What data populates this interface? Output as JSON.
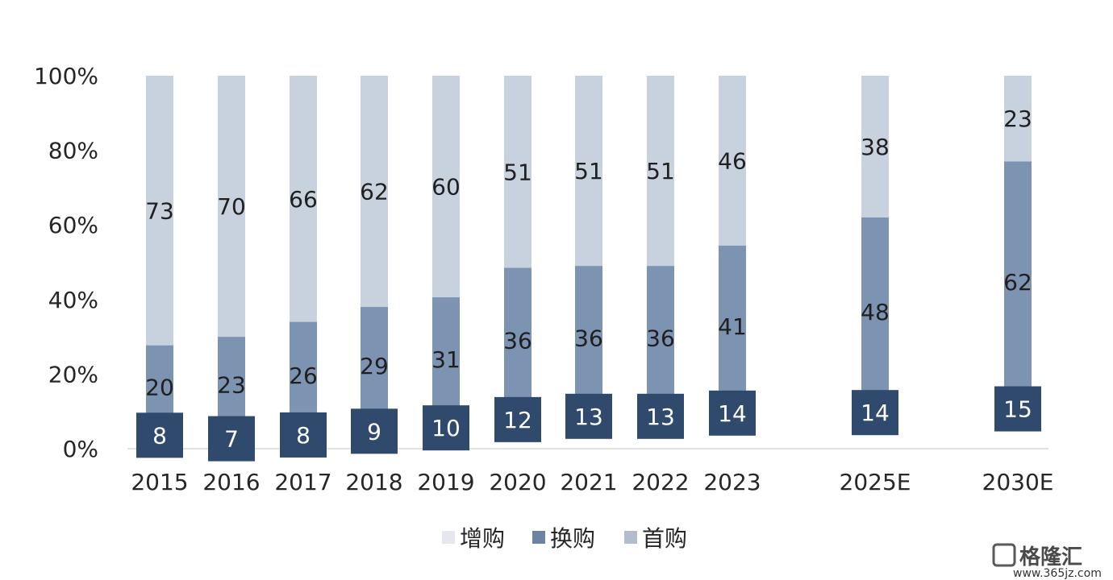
{
  "chart_data": {
    "type": "bar",
    "stacked": true,
    "categories": [
      "2015",
      "2016",
      "2017",
      "2018",
      "2019",
      "2020",
      "2021",
      "2022",
      "2023",
      "2025E",
      "2030E"
    ],
    "series": [
      {
        "name": "增购",
        "values": [
          8,
          7,
          8,
          9,
          10,
          12,
          13,
          13,
          14,
          14,
          15
        ],
        "color": "#2f4a6d"
      },
      {
        "name": "换购",
        "values": [
          20,
          23,
          26,
          29,
          31,
          36,
          36,
          36,
          41,
          48,
          62
        ],
        "color": "#7d93b2"
      },
      {
        "name": "首购",
        "values": [
          73,
          70,
          66,
          62,
          60,
          51,
          51,
          51,
          46,
          38,
          23
        ],
        "color": "#c8d1de"
      }
    ],
    "legend_swatch_colors": [
      "#e4e8ee",
      "#6d83a3",
      "#b3bccb"
    ],
    "yaxis": {
      "ylim": [
        0,
        100
      ],
      "ticks": [
        "0%",
        "20%",
        "40%",
        "60%",
        "80%",
        "100%"
      ]
    },
    "title": "",
    "xlabel": "",
    "ylabel": "",
    "grid": false,
    "legend_position": "bottom"
  },
  "watermark": {
    "brand": "格隆汇",
    "url": "www.365jz.com"
  }
}
